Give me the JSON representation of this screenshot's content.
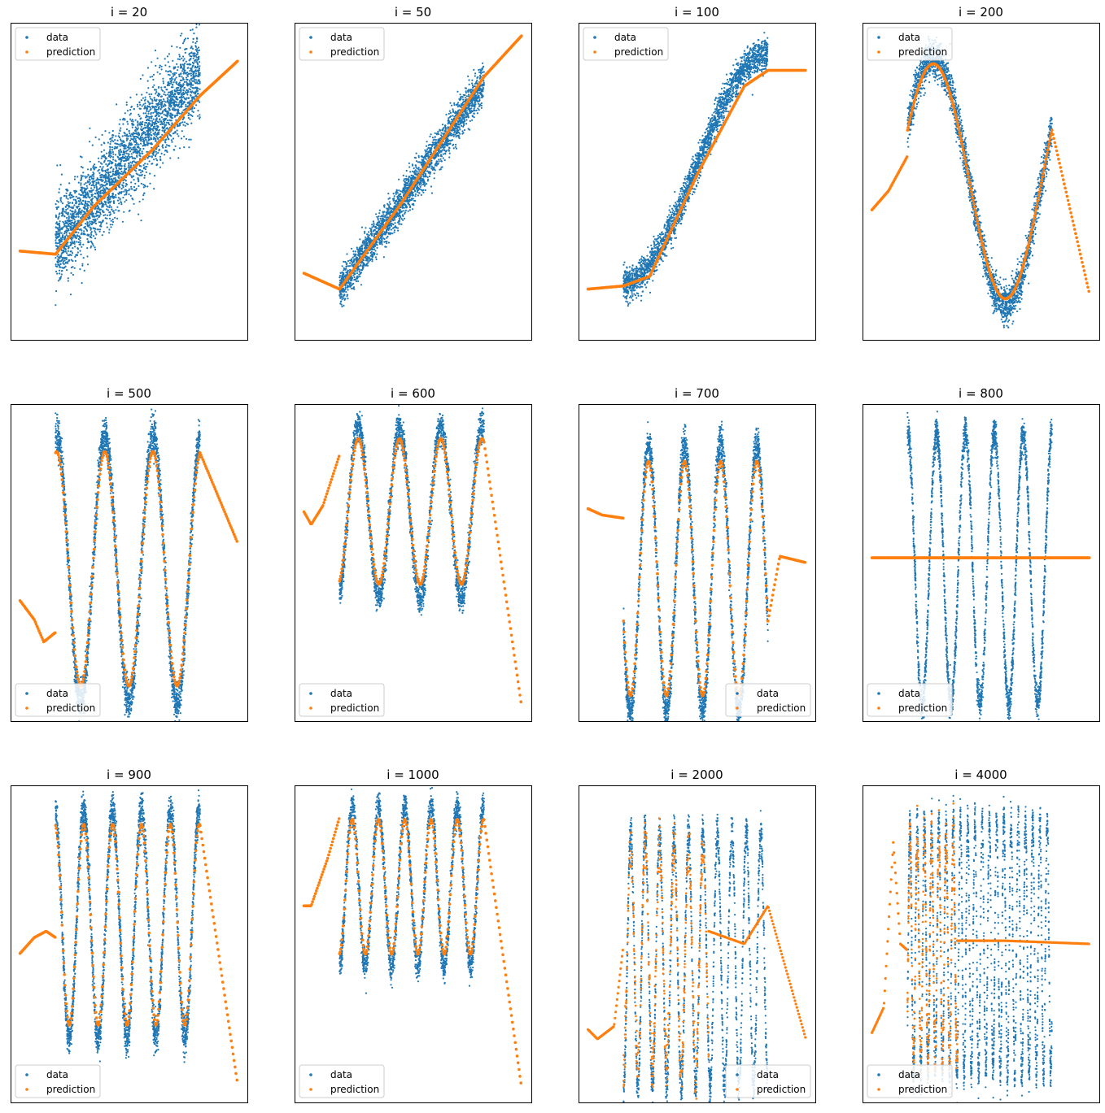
{
  "colors": {
    "data": "#1f77b4",
    "prediction": "#ff7f0e"
  },
  "legend_labels": {
    "data": "data",
    "prediction": "prediction"
  },
  "chart_data": [
    {
      "type": "scatter",
      "title": "i = 20",
      "legend": "upper-left",
      "series": [
        {
          "name": "data",
          "shape": "linear",
          "cycles": 0
        },
        {
          "name": "prediction",
          "shape": "linear-fit"
        }
      ]
    },
    {
      "type": "scatter",
      "title": "i = 50",
      "legend": "upper-left",
      "series": [
        {
          "name": "data",
          "shape": "linear",
          "cycles": 0
        },
        {
          "name": "prediction",
          "shape": "linear-fit"
        }
      ]
    },
    {
      "type": "scatter",
      "title": "i = 100",
      "legend": "upper-left",
      "series": [
        {
          "name": "data",
          "shape": "sine",
          "cycles": 0.5
        },
        {
          "name": "prediction",
          "shape": "fit"
        }
      ]
    },
    {
      "type": "scatter",
      "title": "i = 200",
      "legend": "upper-left",
      "series": [
        {
          "name": "data",
          "shape": "sine",
          "cycles": 1
        },
        {
          "name": "prediction",
          "shape": "fit"
        }
      ]
    },
    {
      "type": "scatter",
      "title": "i = 500",
      "legend": "lower-left",
      "series": [
        {
          "name": "data",
          "shape": "sine",
          "cycles": 3
        },
        {
          "name": "prediction",
          "shape": "fit"
        }
      ]
    },
    {
      "type": "scatter",
      "title": "i = 600",
      "legend": "lower-left",
      "series": [
        {
          "name": "data",
          "shape": "sine",
          "cycles": 3.5
        },
        {
          "name": "prediction",
          "shape": "fit"
        }
      ]
    },
    {
      "type": "scatter",
      "title": "i = 700",
      "legend": "lower-right",
      "series": [
        {
          "name": "data",
          "shape": "sine",
          "cycles": 4
        },
        {
          "name": "prediction",
          "shape": "fit"
        }
      ]
    },
    {
      "type": "scatter",
      "title": "i = 800",
      "legend": "lower-left",
      "series": [
        {
          "name": "data",
          "shape": "sine",
          "cycles": 5
        },
        {
          "name": "prediction",
          "shape": "flat"
        }
      ]
    },
    {
      "type": "scatter",
      "title": "i = 900",
      "legend": "lower-left",
      "series": [
        {
          "name": "data",
          "shape": "sine",
          "cycles": 5
        },
        {
          "name": "prediction",
          "shape": "fit"
        }
      ]
    },
    {
      "type": "scatter",
      "title": "i = 1000",
      "legend": "lower-left",
      "series": [
        {
          "name": "data",
          "shape": "sine",
          "cycles": 5.5
        },
        {
          "name": "prediction",
          "shape": "fit"
        }
      ]
    },
    {
      "type": "scatter",
      "title": "i = 2000",
      "legend": "lower-right",
      "series": [
        {
          "name": "data",
          "shape": "sine",
          "cycles": 10
        },
        {
          "name": "prediction",
          "shape": "noisy"
        }
      ]
    },
    {
      "type": "scatter",
      "title": "i = 4000",
      "legend": "lower-left",
      "series": [
        {
          "name": "data",
          "shape": "sine",
          "cycles": 20
        },
        {
          "name": "prediction",
          "shape": "noisy"
        }
      ]
    }
  ]
}
